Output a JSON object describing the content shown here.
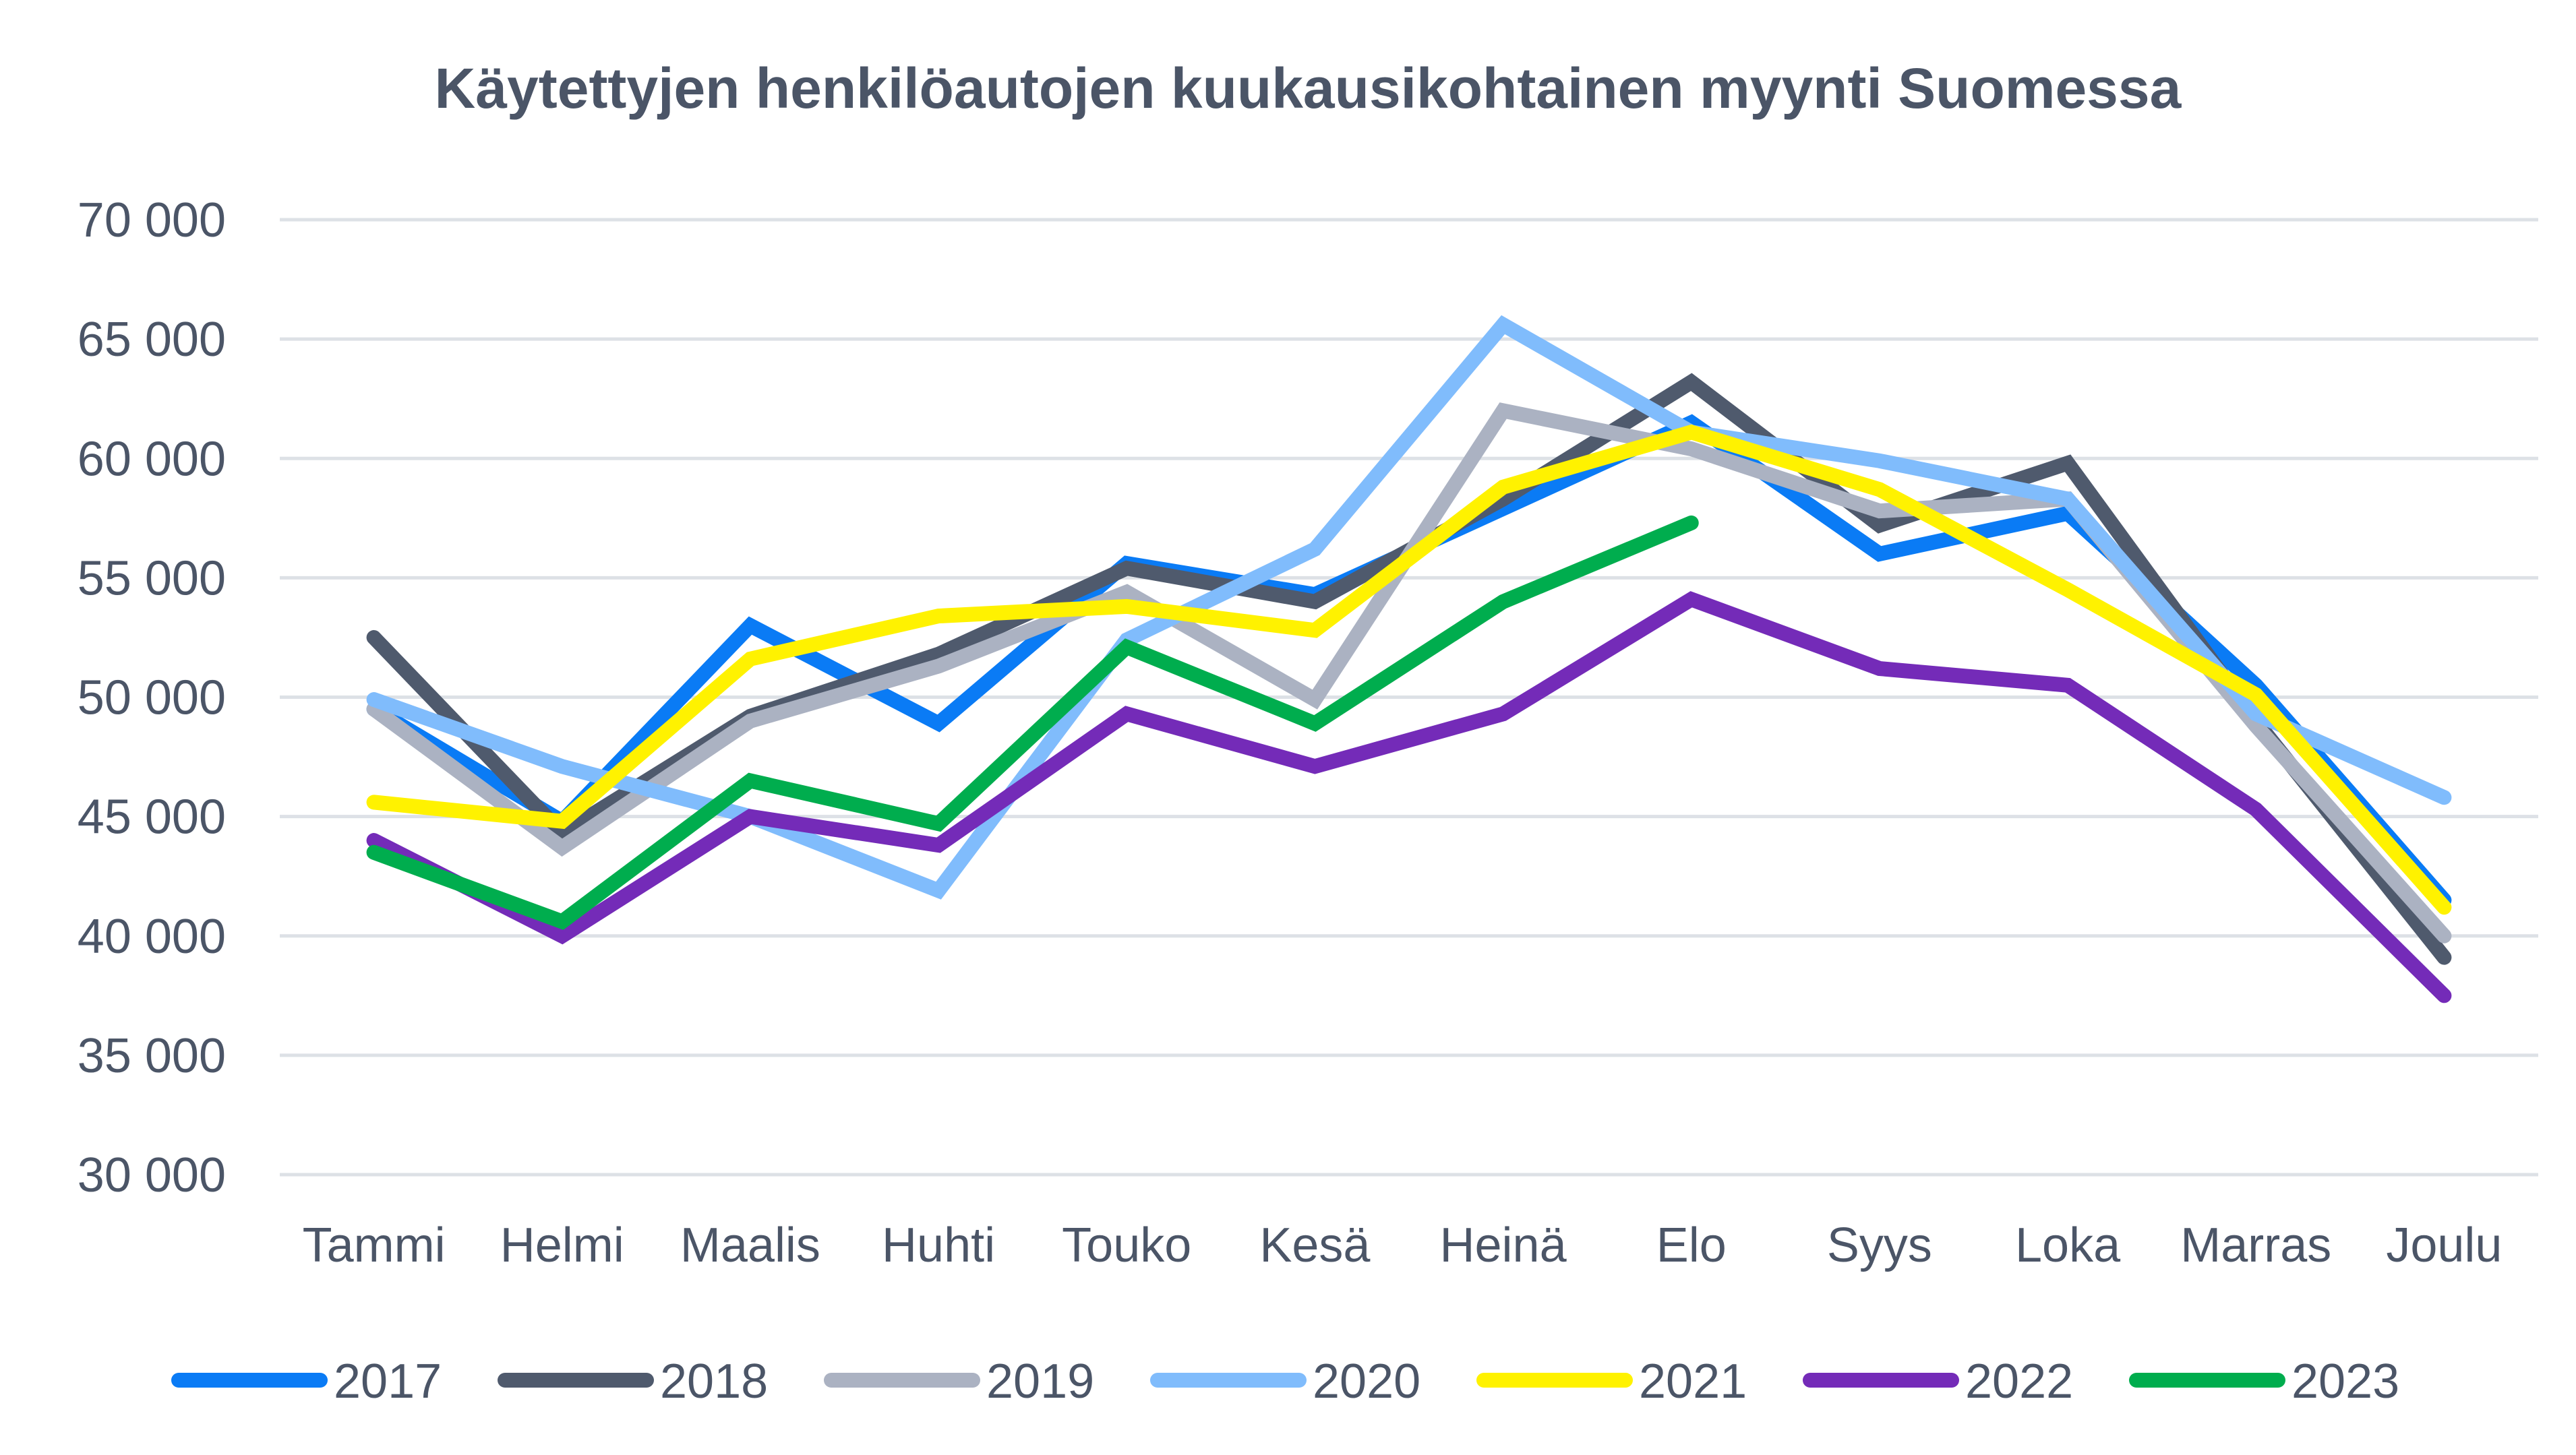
{
  "chart_data": {
    "type": "line",
    "title": "Käytettyjen henkilöautojen kuukausikohtainen myynti Suomessa",
    "xlabel": "",
    "ylabel": "",
    "categories": [
      "Tammi",
      "Helmi",
      "Maalis",
      "Huhti",
      "Touko",
      "Kesä",
      "Heinä",
      "Elo",
      "Syys",
      "Loka",
      "Marras",
      "Joulu"
    ],
    "ylim": [
      30000,
      70000
    ],
    "yticks": [
      30000,
      35000,
      40000,
      45000,
      50000,
      55000,
      60000,
      65000,
      70000
    ],
    "ytick_labels": [
      "30 000",
      "35 000",
      "40 000",
      "45 000",
      "50 000",
      "55 000",
      "60 000",
      "65 000",
      "70 000"
    ],
    "grid": true,
    "legend_position": "bottom",
    "series": [
      {
        "name": "2017",
        "color": "#0a7bf5",
        "values": [
          49500,
          44800,
          53000,
          48900,
          55600,
          54300,
          57900,
          61500,
          56000,
          57700,
          50500,
          41500
        ]
      },
      {
        "name": "2018",
        "color": "#4f5a6d",
        "values": [
          52500,
          44300,
          49200,
          51800,
          55400,
          54000,
          58300,
          63200,
          57200,
          59800,
          49000,
          39100
        ]
      },
      {
        "name": "2019",
        "color": "#abb2c2",
        "values": [
          49500,
          43700,
          49000,
          51300,
          54400,
          49900,
          62000,
          60400,
          57800,
          58300,
          48800,
          40000
        ]
      },
      {
        "name": "2020",
        "color": "#80bcfc",
        "values": [
          49900,
          47100,
          45000,
          41900,
          52400,
          56200,
          65600,
          61100,
          59900,
          58300,
          49300,
          45800
        ]
      },
      {
        "name": "2021",
        "color": "#fff200",
        "values": [
          45600,
          44800,
          51600,
          53400,
          53800,
          52800,
          58800,
          61100,
          58700,
          54500,
          50100,
          41200
        ]
      },
      {
        "name": "2022",
        "color": "#742bb8",
        "values": [
          44000,
          40000,
          45000,
          43800,
          49300,
          47100,
          49300,
          54100,
          51200,
          50500,
          45300,
          37500
        ]
      },
      {
        "name": "2023",
        "color": "#00ad4e",
        "values": [
          43500,
          40600,
          46500,
          44700,
          52100,
          48900,
          54000,
          57300,
          null,
          null,
          null,
          null
        ]
      }
    ]
  }
}
